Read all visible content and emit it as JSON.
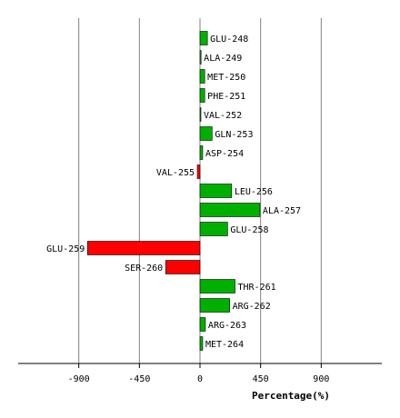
{
  "chart_data": {
    "type": "bar",
    "orientation": "horizontal",
    "title": "",
    "xlabel": "Percentage(%)",
    "ylabel": "",
    "xlim": [
      -1350,
      1350
    ],
    "x_ticks": [
      -900,
      -450,
      0,
      450,
      900
    ],
    "x_tick_labels": [
      "-900",
      "-450",
      "0",
      "450",
      "900"
    ],
    "grid": "vertical",
    "colors": {
      "positive": "#00b000",
      "negative": "#ff0000",
      "grid": "#808080",
      "axis": "#000000"
    },
    "categories": [
      "GLU-248",
      "ALA-249",
      "MET-250",
      "PHE-251",
      "VAL-252",
      "GLN-253",
      "ASP-254",
      "VAL-255",
      "LEU-256",
      "ALA-257",
      "GLU-258",
      "GLU-259",
      "SER-260",
      "THR-261",
      "ARG-262",
      "ARG-263",
      "MET-264"
    ],
    "values": [
      55,
      8,
      35,
      35,
      4,
      90,
      20,
      -20,
      235,
      445,
      205,
      -835,
      -255,
      260,
      220,
      40,
      20
    ]
  }
}
